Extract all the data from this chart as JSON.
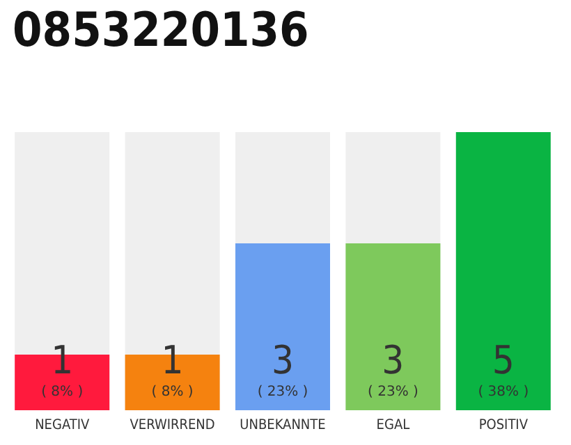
{
  "chart_data": {
    "type": "bar",
    "title": "0853220136",
    "categories": [
      "NEGATIV",
      "VERWIRREND",
      "UNBEKANNTE",
      "EGAL",
      "POSITIV"
    ],
    "values": [
      1,
      1,
      3,
      3,
      5
    ],
    "colors": [
      "#ff1a3d",
      "#f5820f",
      "#6a9ff0",
      "#7ec95c",
      "#0ab443"
    ],
    "value_labels": [
      "1\n( 8% )",
      "1\n( 8% )",
      "3\n( 23% )",
      "3\n( 23% )",
      "5\n( 38% )"
    ]
  }
}
